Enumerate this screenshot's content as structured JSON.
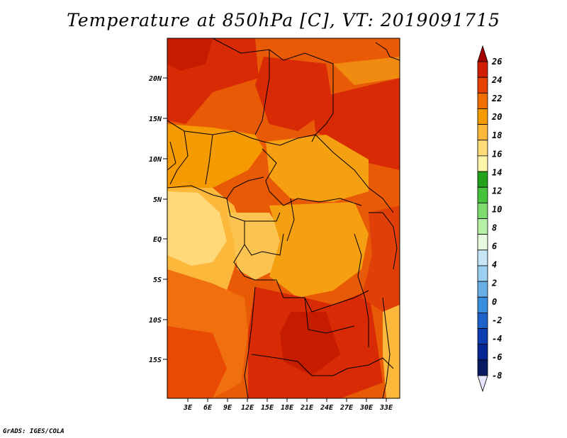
{
  "title": "Temperature at 850hPa [C], VT: 2019091715",
  "footer": "GrADS: IGES/COLA",
  "lat_labels": [
    "20N",
    "15N",
    "10N",
    "5N",
    "EQ",
    "5S",
    "10S",
    "15S"
  ],
  "lon_labels": [
    "3E",
    "6E",
    "9E",
    "12E",
    "15E",
    "18E",
    "21E",
    "24E",
    "27E",
    "30E",
    "33E"
  ],
  "colorbar": {
    "labels": [
      "26",
      "24",
      "22",
      "20",
      "18",
      "16",
      "14",
      "12",
      "10",
      "8",
      "6",
      "4",
      "2",
      "0",
      "-2",
      "-4",
      "-6",
      "-8"
    ],
    "colors": [
      "#a50000",
      "#d21e00",
      "#e64100",
      "#f06e00",
      "#f59a00",
      "#fbb83a",
      "#ffdc78",
      "#fff5a8",
      "#21a21a",
      "#45c33d",
      "#7ddc6d",
      "#b5f0a6",
      "#e6fadf",
      "#c6e6f6",
      "#9bd0f0",
      "#67afe6",
      "#3a8ee0",
      "#1d62c9",
      "#0d3db0",
      "#052694",
      "#071a62",
      "#e6e6ff"
    ]
  }
}
